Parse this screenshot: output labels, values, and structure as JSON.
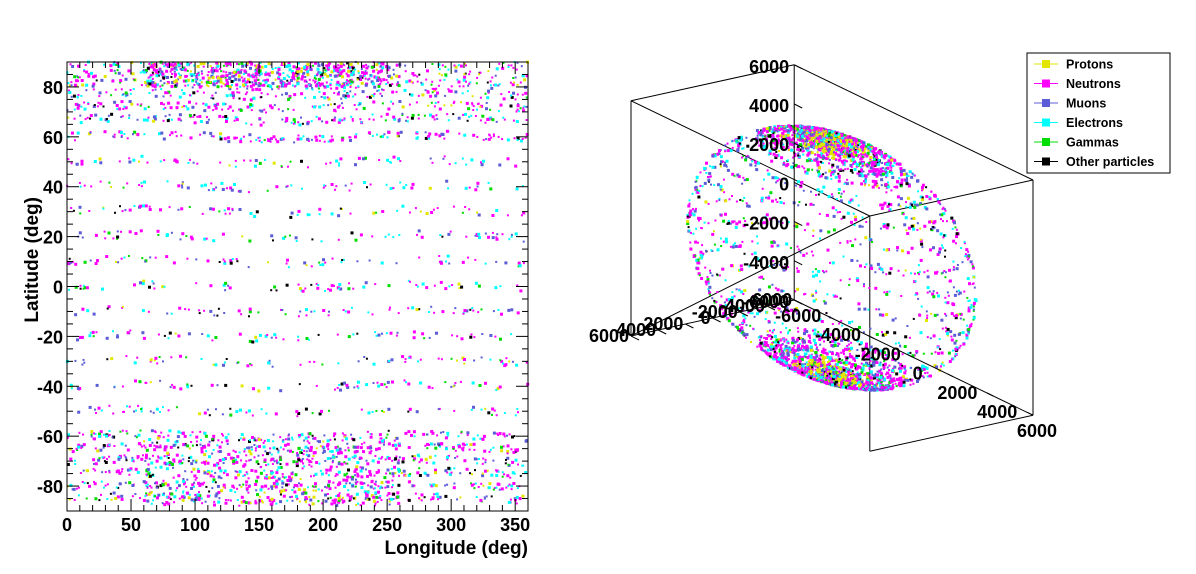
{
  "chart_data": [
    {
      "type": "scatter",
      "title": "",
      "xlabel": "Longitude (deg)",
      "ylabel": "Latitude (deg)",
      "xlim": [
        0,
        360
      ],
      "ylim": [
        -90,
        90
      ],
      "x_ticks": [
        "0",
        "50",
        "100",
        "150",
        "200",
        "250",
        "300",
        "350"
      ],
      "x_tick_values": [
        0,
        50,
        100,
        150,
        200,
        250,
        300,
        350
      ],
      "y_ticks": [
        "-80",
        "-60",
        "-40",
        "-20",
        "0",
        "20",
        "40",
        "60",
        "80"
      ],
      "y_tick_values": [
        -80,
        -60,
        -40,
        -20,
        0,
        20,
        40,
        60,
        80
      ],
      "latitude_bands_deg": [
        -85,
        -80,
        -75,
        -70,
        -65,
        -60,
        -50,
        -40,
        -30,
        -20,
        -10,
        0,
        10,
        20,
        30,
        40,
        50,
        60,
        67,
        72,
        77,
        81,
        85,
        89
      ],
      "grid": false,
      "legend": "none"
    },
    {
      "type": "scatter",
      "title": "",
      "projection": "3d",
      "xlim": [
        -6000,
        6000
      ],
      "ylim": [
        -6000,
        6000
      ],
      "zlim": [
        -6000,
        6000
      ],
      "sphere_radius": 6000,
      "z_ticks": [
        "6000",
        "4000",
        "2000",
        "0",
        "-2000",
        "-4000",
        "-6000"
      ],
      "z_tick_values": [
        6000,
        4000,
        2000,
        0,
        -2000,
        -4000,
        -6000
      ],
      "y_ticks": [
        "6000",
        "4000",
        "2000",
        "0",
        "-2000",
        "-4000",
        "-6000"
      ],
      "y_tick_values": [
        6000,
        4000,
        2000,
        0,
        -2000,
        -4000,
        -6000
      ],
      "x_ticks": [
        "-6000",
        "-4000",
        "-2000",
        "0",
        "2000",
        "4000",
        "6000"
      ],
      "x_tick_values": [
        -6000,
        -4000,
        -2000,
        0,
        2000,
        4000,
        6000
      ],
      "grid": false,
      "legend": "top-right"
    }
  ],
  "legend": {
    "entries": [
      {
        "label": "Protons",
        "color": "#e3e600"
      },
      {
        "label": "Neutrons",
        "color": "#ff00ff"
      },
      {
        "label": "Muons",
        "color": "#5c5cd6"
      },
      {
        "label": "Electrons",
        "color": "#00ffff"
      },
      {
        "label": "Gammas",
        "color": "#00dd00"
      },
      {
        "label": "Other particles",
        "color": "#000000"
      }
    ]
  }
}
